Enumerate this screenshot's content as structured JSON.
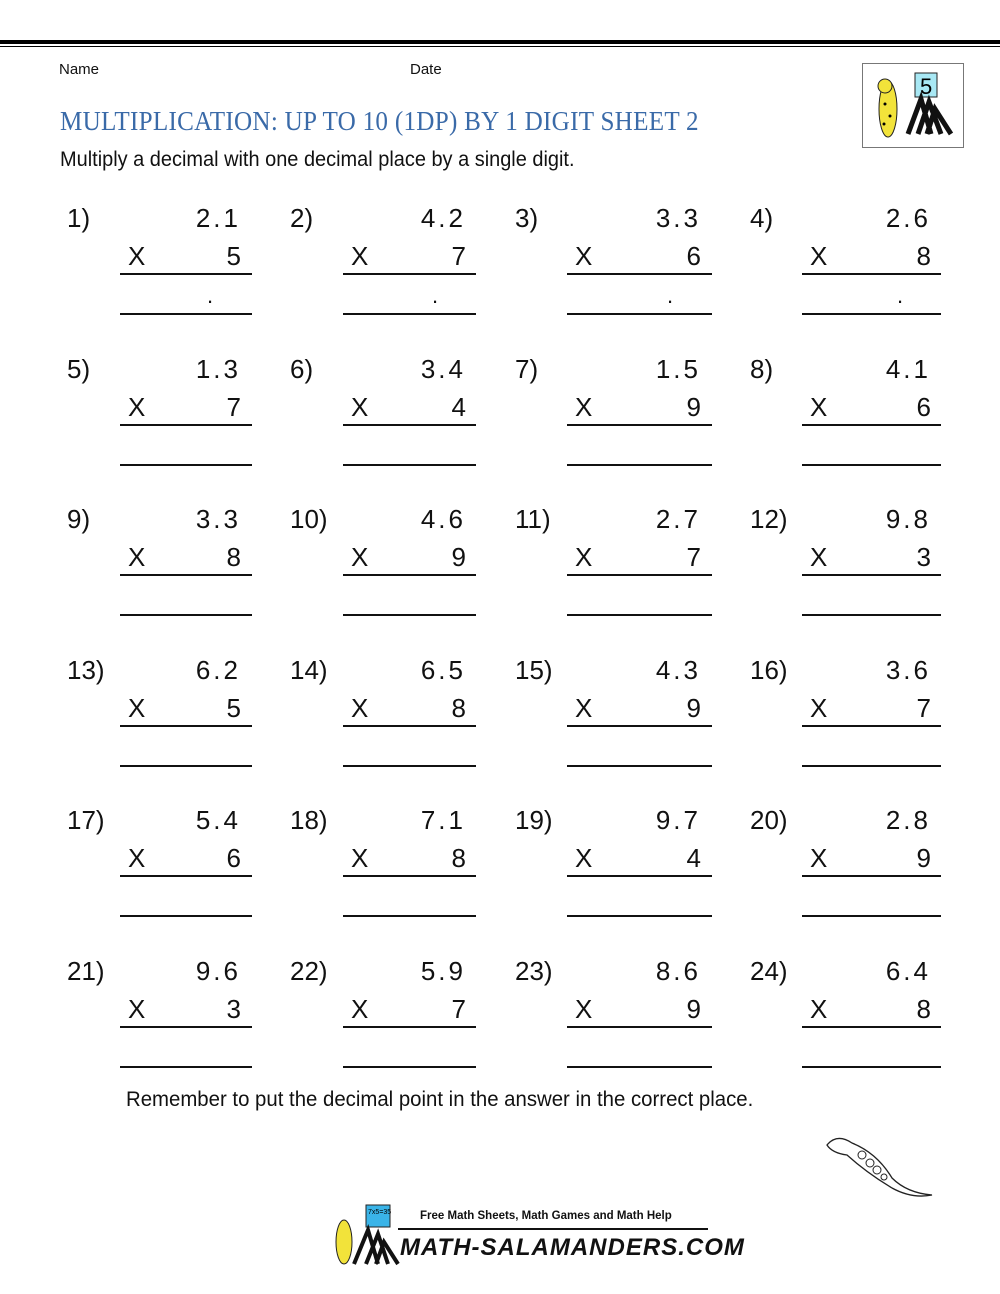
{
  "header": {
    "name_label": "Name",
    "date_label": "Date",
    "logo_number": "5"
  },
  "title": "MULTIPLICATION: UP TO 10 (1DP) BY 1 DIGIT SHEET 2",
  "subtitle": "Multiply a decimal with one decimal place by a single digit.",
  "operator": "X",
  "problems": [
    {
      "n": "1)",
      "a": "2.1",
      "b": "5",
      "dot": "."
    },
    {
      "n": "2)",
      "a": "4.2",
      "b": "7",
      "dot": "."
    },
    {
      "n": "3)",
      "a": "3.3",
      "b": "6",
      "dot": "."
    },
    {
      "n": "4)",
      "a": "2.6",
      "b": "8",
      "dot": "."
    },
    {
      "n": "5)",
      "a": "1.3",
      "b": "7"
    },
    {
      "n": "6)",
      "a": "3.4",
      "b": "4"
    },
    {
      "n": "7)",
      "a": "1.5",
      "b": "9"
    },
    {
      "n": "8)",
      "a": "4.1",
      "b": "6"
    },
    {
      "n": "9)",
      "a": "3.3",
      "b": "8"
    },
    {
      "n": "10)",
      "a": "4.6",
      "b": "9"
    },
    {
      "n": "11)",
      "a": "2.7",
      "b": "7"
    },
    {
      "n": "12)",
      "a": "9.8",
      "b": "3"
    },
    {
      "n": "13)",
      "a": "6.2",
      "b": "5"
    },
    {
      "n": "14)",
      "a": "6.5",
      "b": "8"
    },
    {
      "n": "15)",
      "a": "4.3",
      "b": "9"
    },
    {
      "n": "16)",
      "a": "3.6",
      "b": "7"
    },
    {
      "n": "17)",
      "a": "5.4",
      "b": "6"
    },
    {
      "n": "18)",
      "a": "7.1",
      "b": "8"
    },
    {
      "n": "19)",
      "a": "9.7",
      "b": "4"
    },
    {
      "n": "20)",
      "a": "2.8",
      "b": "9"
    },
    {
      "n": "21)",
      "a": "9.6",
      "b": "3"
    },
    {
      "n": "22)",
      "a": "5.9",
      "b": "7"
    },
    {
      "n": "23)",
      "a": "8.6",
      "b": "9"
    },
    {
      "n": "24)",
      "a": "6.4",
      "b": "8"
    }
  ],
  "note": "Remember to put the decimal point in the answer in the correct place.",
  "footer": {
    "tagline": "Free Math Sheets, Math Games and Math Help",
    "site": "MATH-SALAMANDERS.COM",
    "board_text": "7x5=35"
  }
}
